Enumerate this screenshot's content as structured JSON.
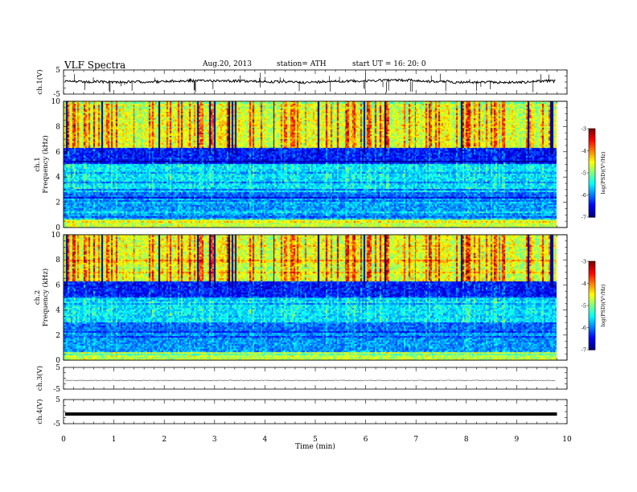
{
  "header": {
    "title": "VLF  Spectra",
    "date": "Aug.20, 2013",
    "station": "station= ATH",
    "start": "start  UT  =    16: 20: 0"
  },
  "chart_data": [
    {
      "type": "line",
      "name": "ch1-waveform",
      "ylabel": "ch.1(V)",
      "ylim": [
        -5,
        5
      ],
      "ytick_labels": [
        "5",
        "-5"
      ],
      "baseline_value": 0.2
    },
    {
      "type": "heatmap",
      "name": "ch1-spectrogram",
      "ylabel_channel": "ch.1",
      "ylabel": "Frequency  (kHz)",
      "ylim": [
        0,
        10
      ],
      "ytick_labels": [
        "0",
        "2",
        "4",
        "6",
        "8",
        "10"
      ],
      "colorbar": {
        "label": "log(PSD)(V²/Hz)",
        "range": [
          -7,
          -3
        ],
        "tick_labels": [
          "-3",
          "-4",
          "-5",
          "-6",
          "-7"
        ]
      }
    },
    {
      "type": "heatmap",
      "name": "ch2-spectrogram",
      "ylabel_channel": "ch.2",
      "ylabel": "Frequency  (kHz)",
      "ylim": [
        0,
        10
      ],
      "ytick_labels": [
        "0",
        "2",
        "4",
        "6",
        "8",
        "10"
      ],
      "colorbar": {
        "label": "log(PSD)(V²/Hz)",
        "range": [
          -7,
          -3
        ],
        "tick_labels": [
          "-3",
          "-4",
          "-5",
          "-6",
          "-7"
        ]
      }
    },
    {
      "type": "line",
      "name": "ch3-waveform",
      "ylabel": "ch.3(V)",
      "ylim": [
        -5,
        5
      ],
      "ytick_labels": [
        "5",
        "-5"
      ],
      "baseline_value": -1
    },
    {
      "type": "line",
      "name": "ch4-waveform",
      "ylabel": "ch.4(V)",
      "ylim": [
        -5,
        5
      ],
      "ytick_labels": [
        "5",
        "-5"
      ],
      "baseline_value": -1
    }
  ],
  "xaxis": {
    "label": "Time  (min)",
    "xlim": [
      0,
      10
    ],
    "data_end": 9.8,
    "tick_labels": [
      "0",
      "1",
      "2",
      "3",
      "4",
      "5",
      "6",
      "7",
      "8",
      "9",
      "10"
    ]
  }
}
